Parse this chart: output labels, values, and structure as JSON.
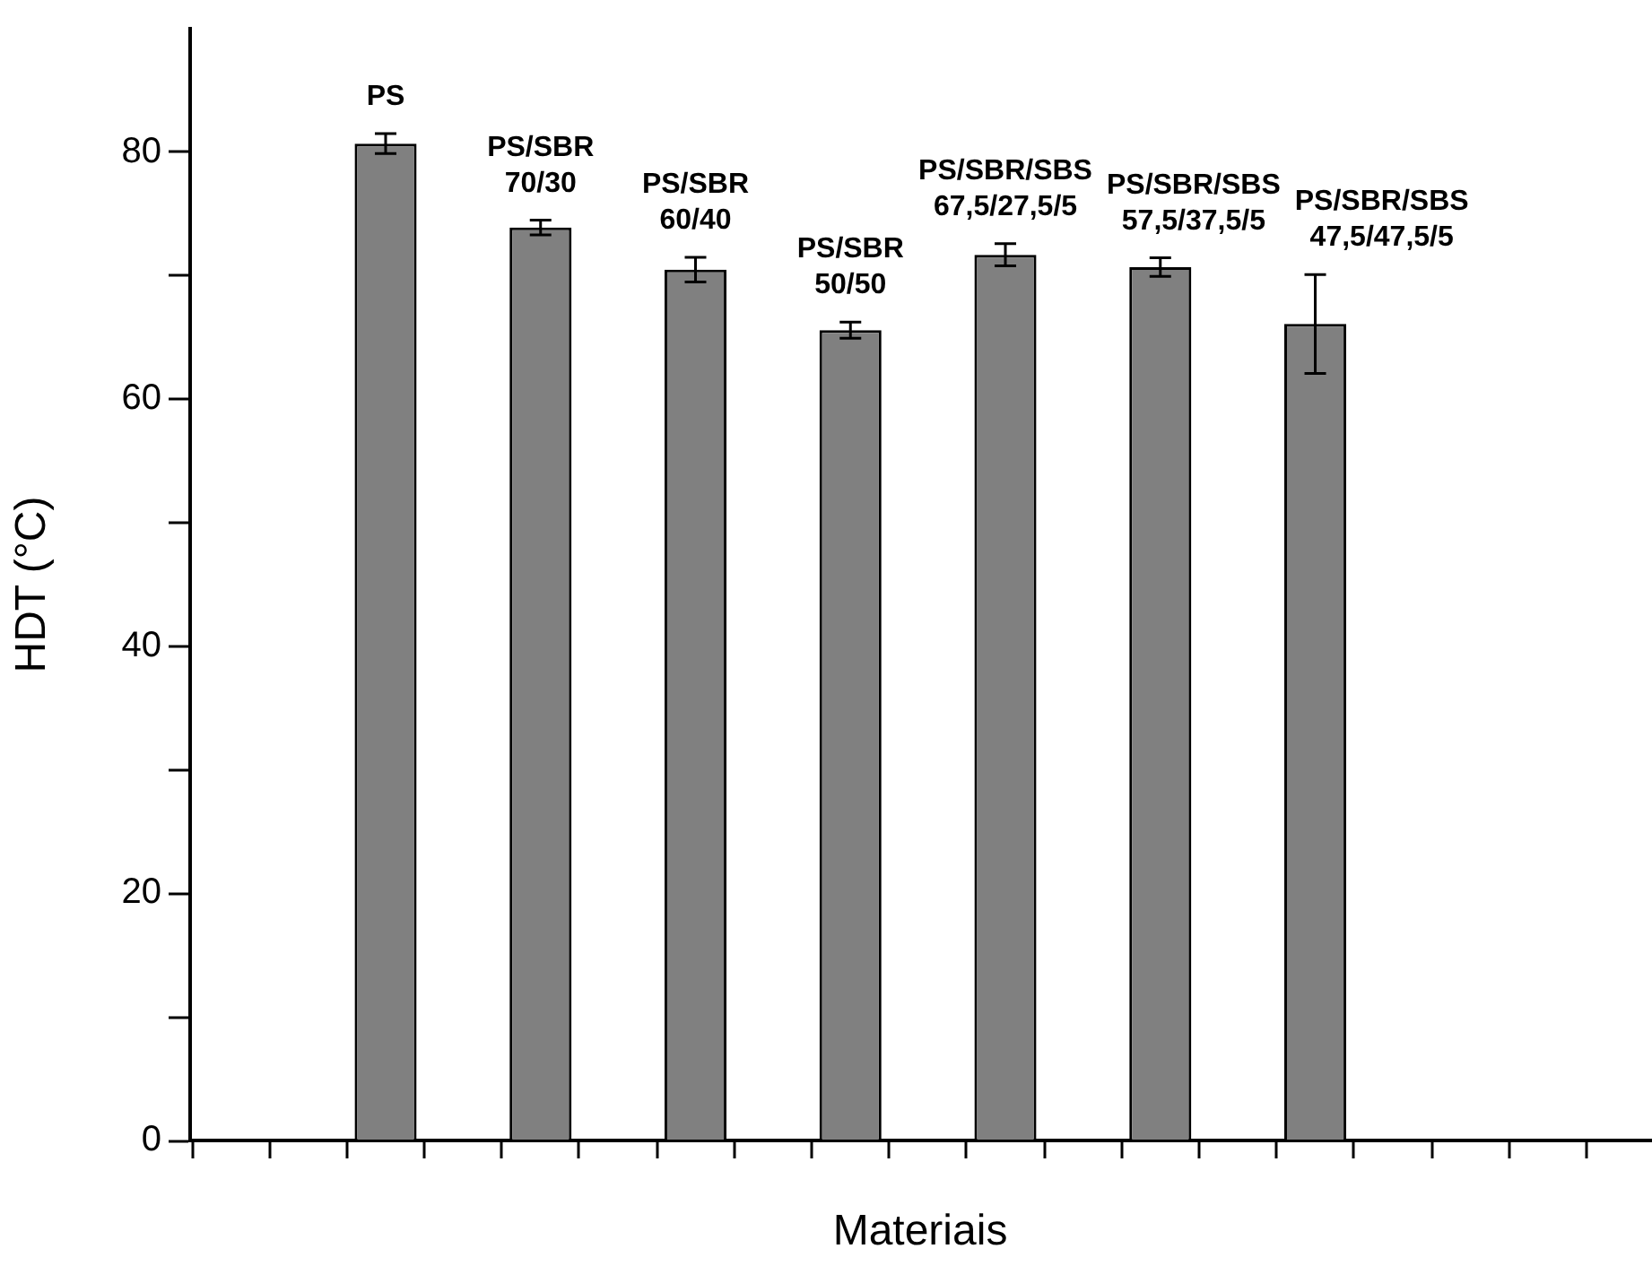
{
  "chart_data": {
    "type": "bar",
    "xlabel": "Materiais",
    "ylabel": "HDT (°C)",
    "categories": [
      null,
      null,
      null,
      null,
      null,
      null,
      null
    ],
    "values": [
      80.7,
      73.9,
      70.5,
      65.6,
      71.7,
      70.7,
      66.1
    ],
    "errors": [
      0.8,
      0.6,
      1.0,
      0.65,
      0.9,
      0.75,
      4.0
    ],
    "color": "#808080",
    "ylim": [
      0,
      90
    ],
    "yticks": [
      0,
      20,
      40,
      60,
      80
    ],
    "tick_labels": "y",
    "annotations": [
      "PS",
      "PS/SBR\n70/30",
      "PS/SBR\n60/40",
      "PS/SBR\n50/50",
      "PS/SBR/SBS\n67,5/27,5/5",
      "PS/SBR/SBS\n57,5/37,5/5",
      "PS/SBR/SBS\n47,5/47,5/5"
    ]
  }
}
